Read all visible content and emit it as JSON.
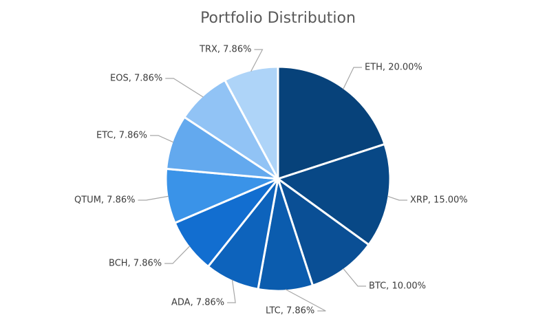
{
  "chart_data": {
    "type": "pie",
    "title": "Portfolio Distribution",
    "slices": [
      {
        "name": "ETH",
        "value": 20.0,
        "label": "ETH, 20.00%",
        "color": "#07427a"
      },
      {
        "name": "XRP",
        "value": 15.0,
        "label": "XRP, 15.00%",
        "color": "#084886"
      },
      {
        "name": "BTC",
        "value": 10.0,
        "label": "BTC, 10.00%",
        "color": "#0a4f95"
      },
      {
        "name": "LTC",
        "value": 7.86,
        "label": "LTC, 7.86%",
        "color": "#0b5cae"
      },
      {
        "name": "ADA",
        "value": 7.86,
        "label": "ADA, 7.86%",
        "color": "#0d63bc"
      },
      {
        "name": "BCH",
        "value": 7.86,
        "label": "BCH, 7.86%",
        "color": "#126ed0"
      },
      {
        "name": "QTUM",
        "value": 7.86,
        "label": "QTUM, 7.86%",
        "color": "#3a93e8"
      },
      {
        "name": "ETC",
        "value": 7.86,
        "label": "ETC, 7.86%",
        "color": "#63a9ee"
      },
      {
        "name": "EOS",
        "value": 7.86,
        "label": "EOS, 7.86%",
        "color": "#91c3f5"
      },
      {
        "name": "TRX",
        "value": 7.86,
        "label": "TRX, 7.86%",
        "color": "#aed4f8"
      }
    ],
    "start_angle_deg": 0,
    "direction": "clockwise",
    "legend": "none",
    "data_labels": "outside-with-leader-lines"
  }
}
